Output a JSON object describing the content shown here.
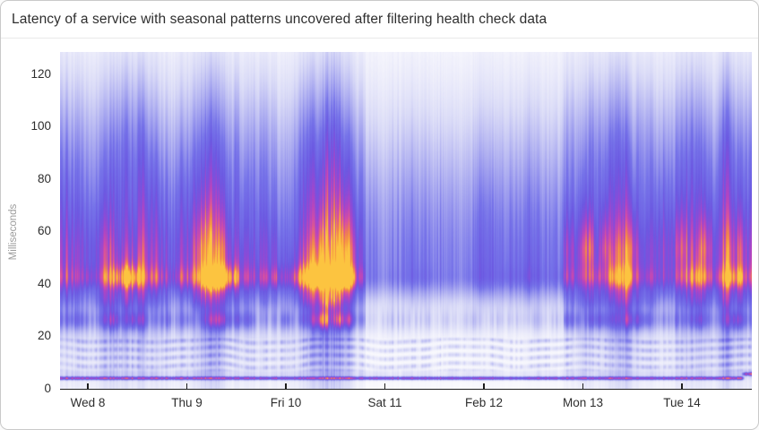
{
  "title": "Latency of a service with seasonal patterns uncovered after filtering health check data",
  "card": {
    "background": "#ffffff",
    "border_color": "#c9c9c9",
    "divider_color": "#e9e9e9",
    "title_color": "#2e2e2e"
  },
  "axis": {
    "tick_color": "#2d2d2d",
    "axis_line_color": "#1d1d1d",
    "ylabel_color": "#9b9b9b"
  },
  "chart_data": {
    "type": "heatmap",
    "title": "Latency of a service with seasonal patterns uncovered after filtering health check data",
    "xlabel": "",
    "ylabel": "Milliseconds",
    "x_tick_labels": [
      "Wed 8",
      "Thu 9",
      "Fri 10",
      "Sat 11",
      "Feb 12",
      "Mon 13",
      "Tue 14"
    ],
    "y_ticks": [
      0,
      20,
      40,
      60,
      80,
      100,
      120
    ],
    "ylim": [
      0,
      129
    ],
    "x_domain_days": [
      -0.28,
      6.7
    ],
    "grid": false,
    "legend": "none",
    "description": "One week of request-latency density. Dense orange/yellow band near 42 ms during Wed-Fri business hours, pink bursts 45-70 ms on Mon-Tue, quiet blue weekend (Sat 11 - Feb 12), constant dark indigo baseline near 4-6 ms, speckled light rows 7-30 ms all week; baseline steps up to ~6 ms at far right.",
    "colorscale": [
      [
        0.0,
        "#ffffff"
      ],
      [
        0.06,
        "#f4f4fc"
      ],
      [
        0.15,
        "#dadbf7"
      ],
      [
        0.28,
        "#a9a9f0"
      ],
      [
        0.42,
        "#7673e9"
      ],
      [
        0.55,
        "#6b59e2"
      ],
      [
        0.65,
        "#874cd9"
      ],
      [
        0.74,
        "#b244c2"
      ],
      [
        0.82,
        "#d9509f"
      ],
      [
        0.89,
        "#ee7b55"
      ],
      [
        0.95,
        "#f79d3f"
      ],
      [
        1.0,
        "#fcc440"
      ]
    ],
    "days": [
      {
        "label": "Wed 8",
        "level": 0.92,
        "core": 1.0,
        "warm": 0.3
      },
      {
        "label": "Thu 9",
        "level": 0.95,
        "core": 1.0,
        "warm": 0.3
      },
      {
        "label": "Fri 10",
        "level": 1.0,
        "core": 1.05,
        "warm": 0.3
      },
      {
        "label": "Sat 11",
        "level": 0.08,
        "core": 1.0,
        "warm": 0.0
      },
      {
        "label": "Feb 12",
        "level": 0.12,
        "core": 1.0,
        "warm": 0.1
      },
      {
        "label": "Mon 13",
        "level": 0.88,
        "core": 0.72,
        "warm": 0.6
      },
      {
        "label": "Tue 14",
        "level": 0.9,
        "core": 0.75,
        "warm": 0.6
      }
    ],
    "bands": [
      {
        "name": "upper-diffuse",
        "mode": "active",
        "c": 55,
        "sU": 55,
        "sD": 55,
        "amp": 0.5,
        "nf": 7,
        "nmin": 0.5,
        "seed": 101
      },
      {
        "name": "tall-columns",
        "mode": "active",
        "c": 95,
        "sU": 30,
        "sD": 30,
        "amp": 0.22,
        "nf": 12,
        "nmin": 0.25,
        "seed": 113
      },
      {
        "name": "base-haze",
        "mode": "always",
        "c": 44,
        "sU": 55,
        "sD": 10,
        "amp": 0.45,
        "nf": 5,
        "nmin": 0.6,
        "seed": 131
      },
      {
        "name": "hot-core",
        "mode": "core",
        "c": 42.5,
        "sU": 4.5,
        "sD": 4.0,
        "amp": 0.62,
        "nf": 9,
        "nmin": 0.4,
        "seed": 149
      },
      {
        "name": "halo",
        "mode": "active",
        "c": 44,
        "sU": 11,
        "sD": 14,
        "amp": 0.3,
        "nf": 6,
        "nmin": 0.55,
        "seed": 163
      },
      {
        "name": "upper-warm",
        "mode": "warm",
        "c": 55,
        "sU": 14,
        "sD": 8,
        "amp": 0.85,
        "nf": 14,
        "nmin": 0.15,
        "seed": 179
      },
      {
        "name": "sub-band",
        "mode": "active",
        "c": 34,
        "sU": 4,
        "sD": 4,
        "amp": 0.3,
        "nf": 10,
        "nmin": 0.45,
        "seed": 191
      },
      {
        "name": "low-blob",
        "mode": "active",
        "c": 26.5,
        "sU": 3.5,
        "sD": 3.5,
        "amp": 0.5,
        "nf": 11,
        "nmin": 0.3,
        "seed": 199
      },
      {
        "name": "speckle",
        "mode": "always",
        "c": 26,
        "sU": 5.5,
        "sD": 5.5,
        "amp": 0.15,
        "nf": 45,
        "nmin": 0.3,
        "seed": 211
      },
      {
        "name": "low-band",
        "mode": "always",
        "c": 6,
        "sU": 1.7,
        "sD": 1.7,
        "amp": 0.1,
        "nf": 20,
        "nmin": 0.55,
        "seed": 227
      }
    ],
    "rows_band": {
      "lo": 6.5,
      "hi": 20.5,
      "amp": 0.16,
      "nf": 40,
      "nmin": 0.3,
      "row_freq": 2.0
    },
    "baseline_band": {
      "c": 4.35,
      "sigma": 0.6,
      "amp": 0.6,
      "step_at": 6.59,
      "step_width": 0.05,
      "step_to": 6.0
    },
    "model": {
      "floor": 0.03,
      "envelope_base": 0.45,
      "envelope_offset": 0.35,
      "envelope_sigma": 0.33,
      "act_noise": [
        6.5,
        0.55,
        18,
        0.72
      ],
      "streak_noise": [
        70,
        0.84,
        0.32,
        160,
        0.9,
        0.2
      ],
      "friday_boost": {
        "amp": 0.3,
        "center": 2.55,
        "sigma": 0.3
      }
    }
  }
}
